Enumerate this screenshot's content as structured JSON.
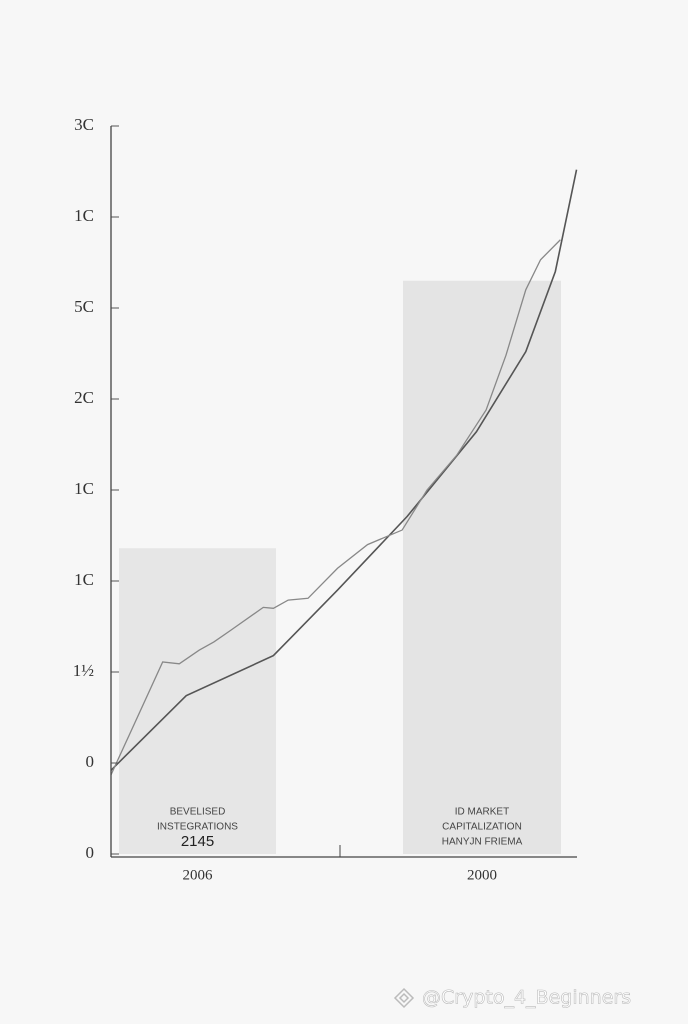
{
  "chart_data": {
    "type": "bar-line",
    "categories": [
      "2006",
      "2000"
    ],
    "values": [
      3.36,
      6.3
    ],
    "bar_colors": [
      "#e6e6e6",
      "#e4e4e4"
    ],
    "bar_labels": [
      [
        "BEVELISED",
        "INSTEGRATIONS",
        "2145"
      ],
      [
        "ID MARKET",
        "CAPITALIZATION",
        "HANYJN FRIEMA"
      ]
    ],
    "xlim": [
      0,
      10.1
    ],
    "ylim": [
      0,
      8
    ],
    "yticks": [
      {
        "value": 0,
        "label": "0"
      },
      {
        "value": 1,
        "label": "0"
      },
      {
        "value": 2,
        "label": "1½"
      },
      {
        "value": 3,
        "label": "1C"
      },
      {
        "value": 4,
        "label": "1C"
      },
      {
        "value": 5,
        "label": "2C"
      },
      {
        "value": 6,
        "label": "5C"
      },
      {
        "value": 7,
        "label": "1C"
      },
      {
        "value": 8,
        "label": "3C"
      }
    ],
    "series": [
      {
        "color": "#555555",
        "x": [
          0,
          1.63,
          3.52,
          4.91,
          6.42,
          7.92,
          8.99,
          9.63,
          10.09
        ],
        "values": [
          0.92,
          1.74,
          2.18,
          2.9,
          3.71,
          4.64,
          5.52,
          6.4,
          7.52
        ]
      },
      {
        "color": "#888888",
        "x": [
          0,
          1.12,
          1.48,
          1.91,
          2.23,
          2.6,
          3.3,
          3.52,
          3.84,
          4.27,
          4.91,
          5.56,
          6.31,
          6.85,
          7.49,
          8.13,
          8.56,
          8.99,
          9.31,
          9.74
        ],
        "values": [
          0.87,
          2.11,
          2.09,
          2.24,
          2.33,
          2.46,
          2.71,
          2.7,
          2.79,
          2.81,
          3.14,
          3.4,
          3.56,
          4.0,
          4.38,
          4.88,
          5.48,
          6.2,
          6.53,
          6.75
        ]
      }
    ],
    "watermark": "@Crypto_4_Beginners"
  }
}
